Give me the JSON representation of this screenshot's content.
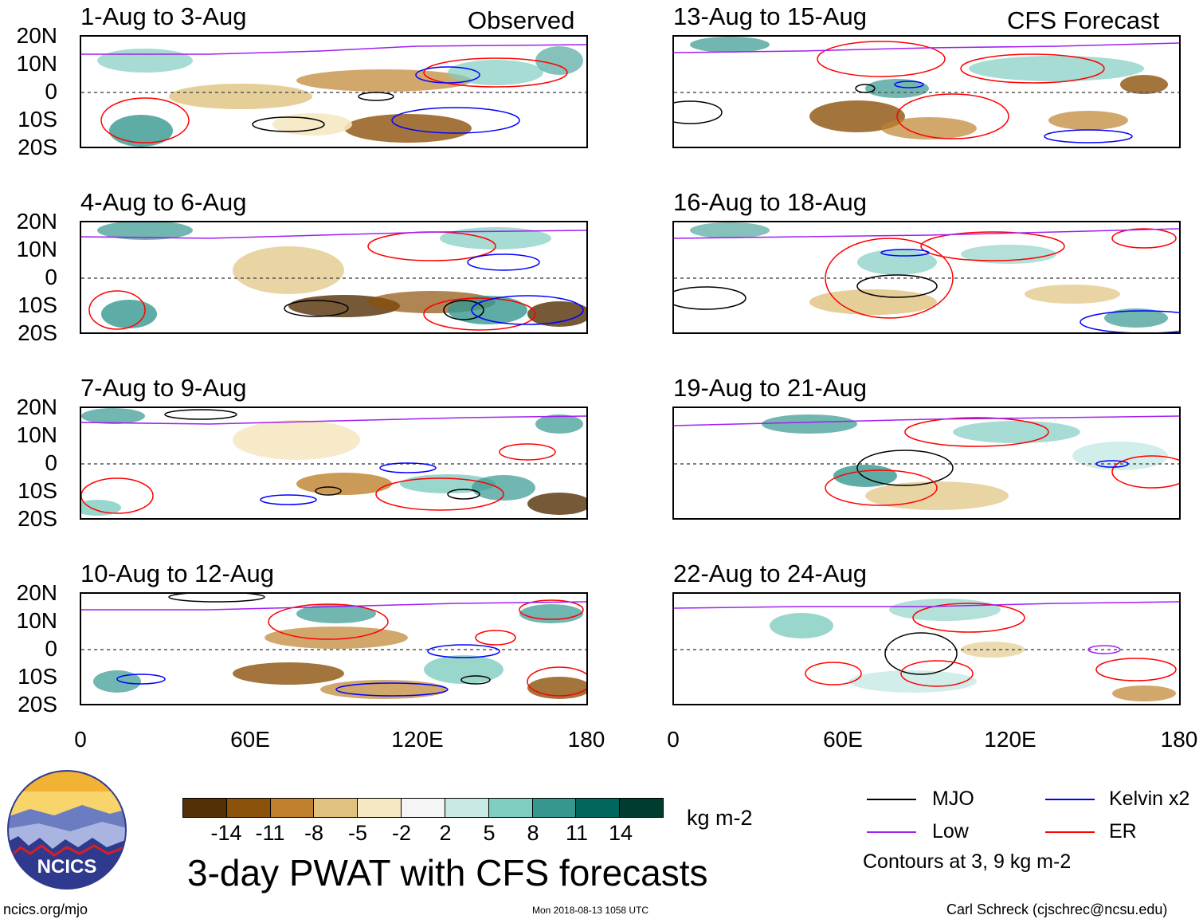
{
  "headers": {
    "observed": "Observed",
    "forecast": "CFS Forecast"
  },
  "panels": [
    {
      "title": "1-Aug to 3-Aug"
    },
    {
      "title": "4-Aug to 6-Aug"
    },
    {
      "title": "7-Aug to 9-Aug"
    },
    {
      "title": "10-Aug to 12-Aug"
    },
    {
      "title": "13-Aug to 15-Aug"
    },
    {
      "title": "16-Aug to 18-Aug"
    },
    {
      "title": "19-Aug to 21-Aug"
    },
    {
      "title": "22-Aug to 24-Aug"
    }
  ],
  "axes": {
    "lat_labels": [
      "20N",
      "10N",
      "0",
      "10S",
      "20S"
    ],
    "lon_labels": [
      "0",
      "60E",
      "120E",
      "180"
    ]
  },
  "colorbar": {
    "colors": [
      "#543005",
      "#8c510a",
      "#bf812d",
      "#dfc27d",
      "#f6e8c3",
      "#f5f5f5",
      "#c7eae5",
      "#80cdc1",
      "#35978f",
      "#01665e",
      "#003c30"
    ],
    "labels": [
      "-14",
      "-11",
      "-8",
      "-5",
      "-2",
      "2",
      "5",
      "8",
      "11",
      "14"
    ],
    "units": "kg m-2"
  },
  "legend": {
    "items": [
      {
        "label": "MJO",
        "color": "#000000"
      },
      {
        "label": "Kelvin x2",
        "color": "#0000ff"
      },
      {
        "label": "Low",
        "color": "#a020f0"
      },
      {
        "label": "ER",
        "color": "#ff0000"
      }
    ],
    "note": "Contours at 3, 9 kg m-2"
  },
  "logo_text": "NCICS",
  "main_title": "3-day PWAT with CFS forecasts",
  "footer": {
    "website": "ncics.org/mjo",
    "timestamp": "Mon 2018-08-13 1058 UTC",
    "author": "Carl Schreck (cjschrec@ncsu.edu)"
  }
}
